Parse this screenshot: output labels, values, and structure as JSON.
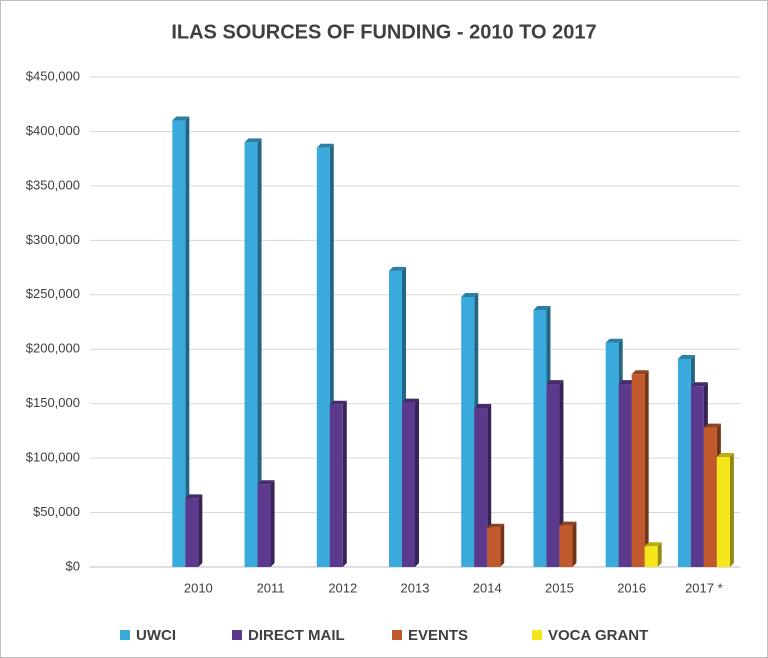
{
  "chart_data": {
    "type": "bar",
    "title": "ILAS SOURCES OF FUNDING - 2010 TO 2017",
    "categories": [
      null,
      "2010",
      "2011",
      "2012",
      "2013",
      "2014",
      "2015",
      "2016",
      "2017 *"
    ],
    "series": [
      {
        "name": "UWCI",
        "color": "#3aa9dc",
        "values": [
          null,
          410000,
          390000,
          385000,
          272000,
          248000,
          236000,
          206000,
          191000
        ]
      },
      {
        "name": "DIRECT MAIL",
        "color": "#5b3a8e",
        "values": [
          null,
          63000,
          76000,
          149000,
          151000,
          146000,
          168000,
          168000,
          166000
        ]
      },
      {
        "name": "EVENTS",
        "color": "#c0592b",
        "values": [
          null,
          null,
          null,
          null,
          null,
          36000,
          38000,
          177000,
          128000
        ]
      },
      {
        "name": "VOCA GRANT",
        "color": "#f5e61a",
        "values": [
          null,
          null,
          null,
          null,
          null,
          null,
          null,
          19000,
          101000
        ]
      }
    ],
    "ylim": [
      0,
      450000
    ],
    "yticks": [
      {
        "value": 0,
        "label": "$0"
      },
      {
        "value": 50000,
        "label": "$50,000"
      },
      {
        "value": 100000,
        "label": "$100,000"
      },
      {
        "value": 150000,
        "label": "$150,000"
      },
      {
        "value": 200000,
        "label": "$200,000"
      },
      {
        "value": 250000,
        "label": "$250,000"
      },
      {
        "value": 300000,
        "label": "$300,000"
      },
      {
        "value": 350000,
        "label": "$350,000"
      },
      {
        "value": 400000,
        "label": "$400,000"
      },
      {
        "value": 450000,
        "label": "$450,000"
      }
    ],
    "grid": true,
    "legend": "bottom"
  }
}
